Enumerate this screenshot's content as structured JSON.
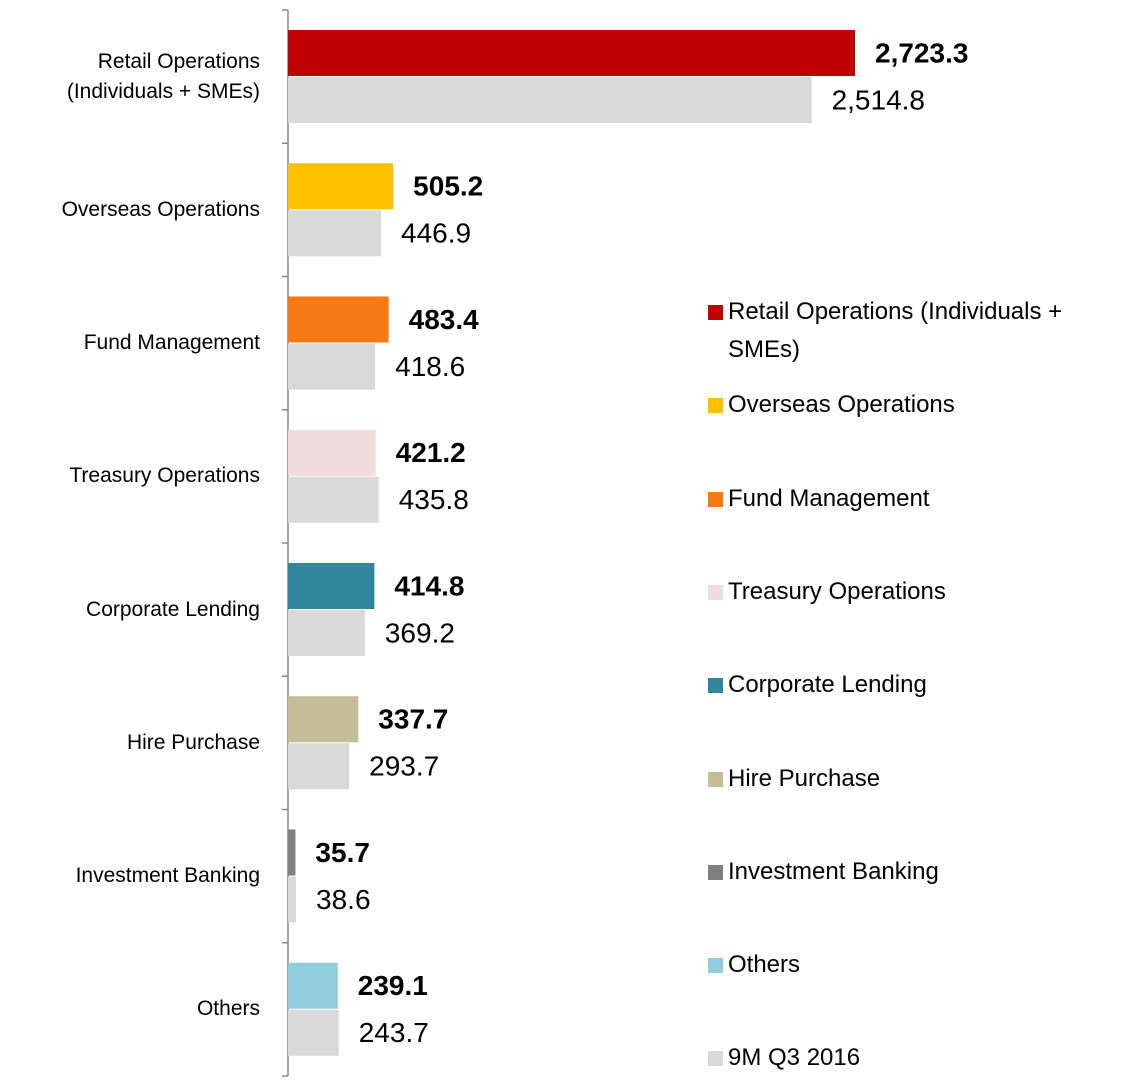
{
  "chart_data": {
    "type": "bar",
    "orientation": "horizontal",
    "categories": [
      "Retail Operations (Individuals + SMEs)",
      "Overseas Operations",
      "Fund Management",
      "Treasury Operations",
      "Corporate Lending",
      "Hire Purchase",
      "Investment Banking",
      "Others"
    ],
    "series": [
      {
        "colors": [
          "#c00000",
          "#ffc000",
          "#f57a14",
          "#f2dcdb",
          "#31859c",
          "#c4bd97",
          "#7f7f7f",
          "#92cddc"
        ],
        "values": [
          2723.3,
          505.2,
          483.4,
          421.2,
          414.8,
          337.7,
          35.7,
          239.1
        ],
        "value_labels": [
          "2,723.3",
          "505.2",
          "483.4",
          "421.2",
          "414.8",
          "337.7",
          "35.7",
          "239.1"
        ]
      },
      {
        "name": "9M Q3 2016",
        "color": "#d9d9d9",
        "values": [
          2514.8,
          446.9,
          418.6,
          435.8,
          369.2,
          293.7,
          38.6,
          243.7
        ],
        "value_labels": [
          "2,514.8",
          "446.9",
          "418.6",
          "435.8",
          "369.2",
          "293.7",
          "38.6",
          "243.7"
        ]
      }
    ]
  }
}
